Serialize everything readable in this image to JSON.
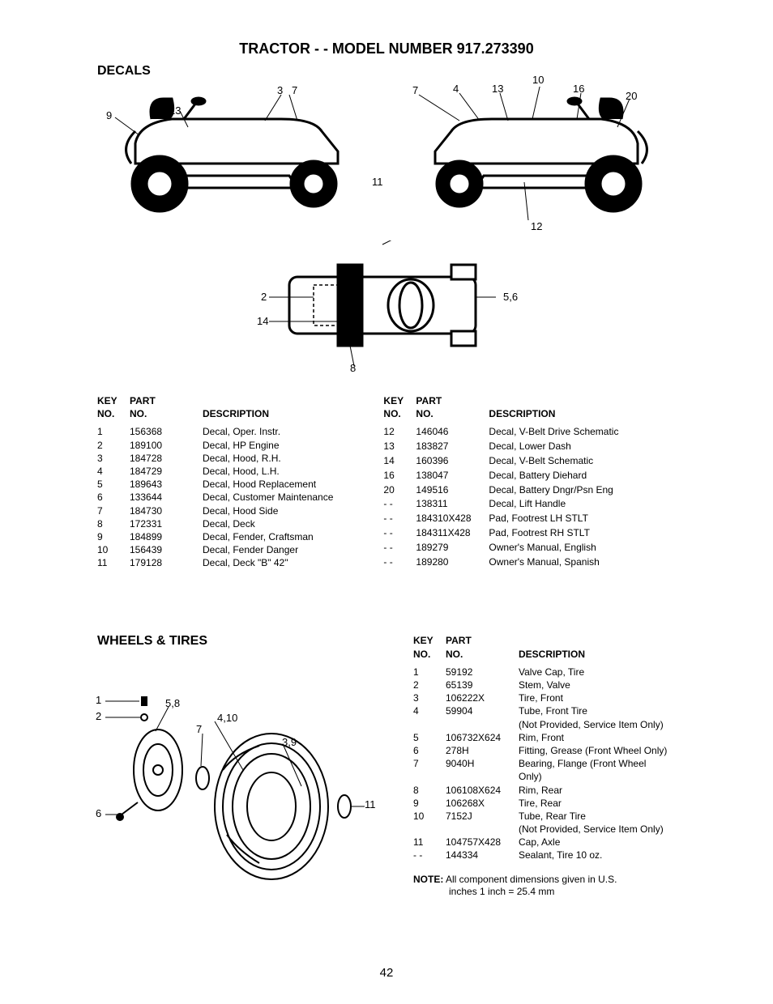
{
  "page": {
    "title": "TRACTOR - - MODEL NUMBER 917.273390",
    "number": "42"
  },
  "decals": {
    "section_title": "DECALS",
    "headers": {
      "key": "KEY NO.",
      "part": "PART NO.",
      "desc": "DESCRIPTION"
    },
    "callouts_left": {
      "c9": "9",
      "c13": "13",
      "c3": "3",
      "c7": "7"
    },
    "callouts_right": {
      "c7": "7",
      "c4": "4",
      "c13": "13",
      "c10": "10",
      "c16": "16",
      "c20": "20",
      "c11": "11",
      "c12": "12"
    },
    "callouts_top": {
      "c2": "2",
      "c14": "14",
      "c8": "8",
      "c56": "5,6"
    },
    "left_table": [
      {
        "key": "1",
        "part": "156368",
        "desc": "Decal, Oper. Instr."
      },
      {
        "key": "2",
        "part": "189100",
        "desc": "Decal, HP Engine"
      },
      {
        "key": "3",
        "part": "184728",
        "desc": "Decal, Hood, R.H."
      },
      {
        "key": "4",
        "part": "184729",
        "desc": "Decal, Hood, L.H."
      },
      {
        "key": "5",
        "part": "189643",
        "desc": "Decal, Hood Replacement"
      },
      {
        "key": "6",
        "part": "133644",
        "desc": "Decal, Customer Maintenance"
      },
      {
        "key": "7",
        "part": "184730",
        "desc": "Decal, Hood Side"
      },
      {
        "key": "8",
        "part": "172331",
        "desc": "Decal, Deck"
      },
      {
        "key": "9",
        "part": "184899",
        "desc": "Decal, Fender, Craftsman"
      },
      {
        "key": "10",
        "part": "156439",
        "desc": "Decal, Fender Danger"
      },
      {
        "key": "11",
        "part": "179128",
        "desc": "Decal, Deck \"B\" 42\""
      }
    ],
    "right_table": [
      {
        "key": "12",
        "part": "146046",
        "desc": "Decal, V-Belt Drive Schematic"
      },
      {
        "key": "13",
        "part": "183827",
        "desc": "Decal, Lower Dash"
      },
      {
        "key": "14",
        "part": "160396",
        "desc": "Decal, V-Belt Schematic"
      },
      {
        "key": "16",
        "part": "138047",
        "desc": "Decal, Battery Diehard"
      },
      {
        "key": "20",
        "part": "149516",
        "desc": "Decal, Battery Dngr/Psn Eng"
      },
      {
        "key": "- -",
        "part": "138311",
        "desc": "Decal, Lift Handle"
      },
      {
        "key": "- -",
        "part": "184310X428",
        "desc": "Pad, Footrest LH STLT"
      },
      {
        "key": "- -",
        "part": "184311X428",
        "desc": "Pad, Footrest RH STLT"
      },
      {
        "key": "- -",
        "part": "189279",
        "desc": "Owner's Manual, English"
      },
      {
        "key": "- -",
        "part": "189280",
        "desc": "Owner's Manual, Spanish"
      }
    ]
  },
  "wheels": {
    "section_title": "WHEELS & TIRES",
    "headers": {
      "key": "KEY NO.",
      "part": "PART NO.",
      "desc": "DESCRIPTION"
    },
    "callouts": {
      "c1": "1",
      "c2": "2",
      "c58": "5,8",
      "c410": "4,10",
      "c7": "7",
      "c39": "3,9",
      "c6": "6",
      "c11": "11"
    },
    "table": [
      {
        "key": "1",
        "part": "59192",
        "desc": "Valve Cap, Tire"
      },
      {
        "key": "2",
        "part": "65139",
        "desc": "Stem, Valve"
      },
      {
        "key": "3",
        "part": "106222X",
        "desc": "Tire, Front"
      },
      {
        "key": "4",
        "part": "59904",
        "desc": "Tube, Front Tire\n(Not Provided, Service Item Only)"
      },
      {
        "key": "5",
        "part": "106732X624",
        "desc": "Rim, Front"
      },
      {
        "key": "6",
        "part": "278H",
        "desc": "Fitting, Grease (Front Wheel Only)"
      },
      {
        "key": "7",
        "part": "9040H",
        "desc": "Bearing, Flange (Front Wheel\nOnly)"
      },
      {
        "key": "8",
        "part": "106108X624",
        "desc": "Rim, Rear"
      },
      {
        "key": "9",
        "part": "106268X",
        "desc": "Tire, Rear"
      },
      {
        "key": "10",
        "part": "7152J",
        "desc": "Tube, Rear Tire\n(Not Provided, Service Item Only)"
      },
      {
        "key": "11",
        "part": "104757X428",
        "desc": "Cap, Axle"
      },
      {
        "key": "- -",
        "part": "144334",
        "desc": "Sealant, Tire 10 oz."
      }
    ],
    "note_label": "NOTE:",
    "note_line1": " All component dimensions given in U.S.",
    "note_line2": "inches 1 inch = 25.4 mm"
  }
}
